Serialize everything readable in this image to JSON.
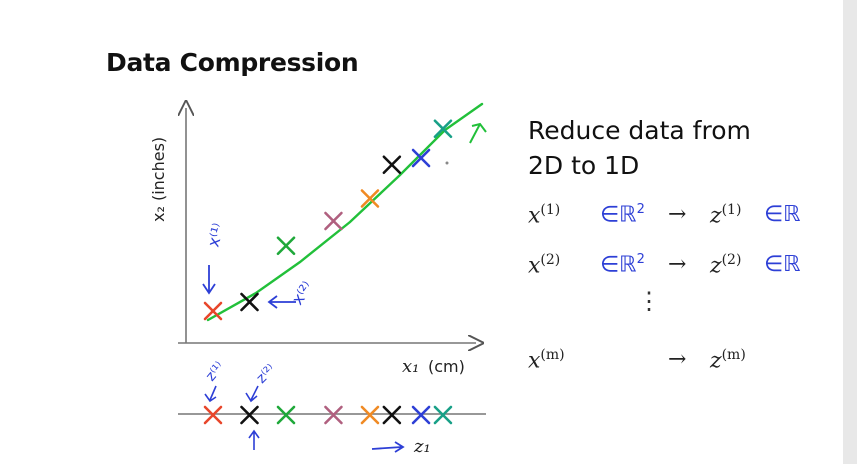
{
  "slide": {
    "title": "Data Compression",
    "reduce_line1": "Reduce data from",
    "reduce_line2": "2D to 1D",
    "vdots": "⋮"
  },
  "plot": {
    "y_axis_label": "x₂ (inches)",
    "x_axis_label_var": "x₁",
    "x_axis_label_unit": "(cm)",
    "line_axis_label": "z₁",
    "annotations": {
      "x1_note": "x⁽¹⁾",
      "x2_note": "x⁽²⁾",
      "z1_note": "z⁽¹⁾",
      "z2_note": "z⁽²⁾"
    },
    "colors": {
      "line": "#22c03a",
      "red": "#e8462b",
      "black": "#111111",
      "green": "#1fa83a",
      "purple": "#b0607f",
      "orange": "#f08a24",
      "blue": "#2d3fd6",
      "teal": "#18a087",
      "handwriting": "#2d3fd6"
    },
    "points_2d": [
      {
        "name": "red",
        "x": 1.0,
        "y": 1.0
      },
      {
        "name": "black",
        "x": 2.0,
        "y": 1.4
      },
      {
        "name": "green",
        "x": 3.0,
        "y": 3.9
      },
      {
        "name": "purple",
        "x": 4.3,
        "y": 5.0
      },
      {
        "name": "orange",
        "x": 5.3,
        "y": 6.0
      },
      {
        "name": "black",
        "x": 5.9,
        "y": 7.5
      },
      {
        "name": "blue",
        "x": 6.7,
        "y": 7.8
      },
      {
        "name": "teal",
        "x": 7.3,
        "y": 9.1
      }
    ],
    "points_1d": [
      {
        "name": "red",
        "z": 1.0
      },
      {
        "name": "black",
        "z": 2.0
      },
      {
        "name": "green",
        "z": 3.0
      },
      {
        "name": "purple",
        "z": 4.3
      },
      {
        "name": "orange",
        "z": 5.3
      },
      {
        "name": "black",
        "z": 5.9
      },
      {
        "name": "blue",
        "z": 6.7
      },
      {
        "name": "teal",
        "z": 7.3
      }
    ]
  },
  "equations": [
    {
      "x": "x",
      "x_sup": "(1)",
      "in": "∈ℝ",
      "in_sup": "2",
      "arrow": "→",
      "z": "z",
      "z_sup": "(1)",
      "z_in": "∈ℝ"
    },
    {
      "x": "x",
      "x_sup": "(2)",
      "in": "∈ℝ",
      "in_sup": "2",
      "arrow": "→",
      "z": "z",
      "z_sup": "(2)",
      "z_in": "∈ℝ"
    },
    {
      "x": "x",
      "x_sup": "(m)",
      "in": "",
      "in_sup": "",
      "arrow": "→",
      "z": "z",
      "z_sup": "(m)",
      "z_in": ""
    }
  ]
}
